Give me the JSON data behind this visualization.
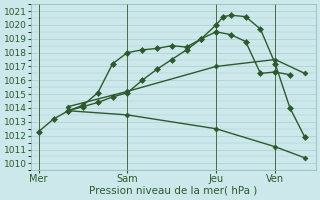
{
  "xlabel": "Pression niveau de la mer( hPa )",
  "bg_color": "#cce8ea",
  "grid_color": "#aacfd2",
  "line_color": "#2d5a2d",
  "vline_color": "#4a6a4a",
  "ylim": [
    1009.5,
    1021.5
  ],
  "yticks": [
    1010,
    1011,
    1012,
    1013,
    1014,
    1015,
    1016,
    1017,
    1018,
    1019,
    1020,
    1021
  ],
  "xtick_labels": [
    "Mer",
    "Sam",
    "Jeu",
    "Ven"
  ],
  "xtick_pos": [
    0,
    24,
    48,
    64
  ],
  "vlines_pos": [
    0,
    24,
    48,
    64
  ],
  "xlim": [
    -2,
    75
  ],
  "series": [
    {
      "x": [
        0,
        4,
        8,
        12,
        16,
        20,
        24,
        28,
        32,
        36,
        40,
        44,
        48,
        50,
        52,
        56,
        60,
        64,
        68,
        72
      ],
      "y": [
        1012.3,
        1013.2,
        1013.8,
        1014.1,
        1014.4,
        1014.8,
        1015.1,
        1016.0,
        1016.8,
        1017.5,
        1018.2,
        1019.0,
        1020.0,
        1020.6,
        1020.7,
        1020.6,
        1019.7,
        1017.2,
        1014.0,
        1011.9
      ]
    },
    {
      "x": [
        8,
        12,
        16,
        20,
        24,
        28,
        32,
        36,
        40,
        44,
        48,
        52,
        56,
        60,
        64,
        68
      ],
      "y": [
        1013.8,
        1014.2,
        1015.1,
        1017.2,
        1018.0,
        1018.2,
        1018.3,
        1018.5,
        1018.4,
        1019.0,
        1019.5,
        1019.3,
        1018.8,
        1016.5,
        1016.6,
        1016.4
      ]
    },
    {
      "x": [
        8,
        24,
        48,
        64,
        72
      ],
      "y": [
        1014.1,
        1015.2,
        1017.0,
        1017.5,
        1016.5
      ]
    },
    {
      "x": [
        8,
        24,
        48,
        64,
        72
      ],
      "y": [
        1013.8,
        1013.5,
        1012.5,
        1011.2,
        1010.4
      ]
    }
  ]
}
